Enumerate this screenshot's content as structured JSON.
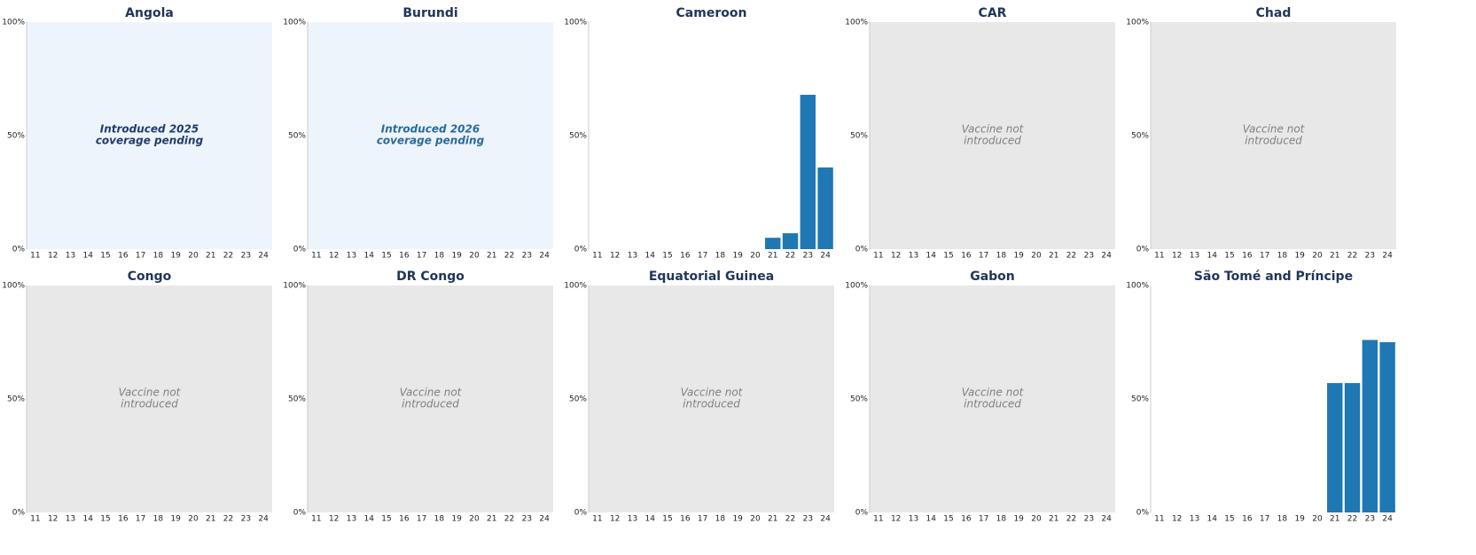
{
  "chart_data": [
    {
      "type": "bar",
      "title": "Angola",
      "categories": [
        "11",
        "12",
        "13",
        "14",
        "15",
        "16",
        "17",
        "18",
        "19",
        "20",
        "21",
        "22",
        "23",
        "24"
      ],
      "values": [
        null,
        null,
        null,
        null,
        null,
        null,
        null,
        null,
        null,
        null,
        null,
        null,
        null,
        null
      ],
      "color": "#1f77b4",
      "background": "#eef4fc",
      "annotation": [
        "Introduced 2025",
        "coverage pending"
      ],
      "annotation_color": "#1f3d6b",
      "ylim": [
        0,
        100
      ],
      "yticks": [
        {
          "value": 0,
          "label": "0%"
        },
        {
          "value": 50,
          "label": "50%"
        },
        {
          "value": 100,
          "label": "100%"
        }
      ]
    },
    {
      "type": "bar",
      "title": "Burundi",
      "categories": [
        "11",
        "12",
        "13",
        "14",
        "15",
        "16",
        "17",
        "18",
        "19",
        "20",
        "21",
        "22",
        "23",
        "24"
      ],
      "values": [
        null,
        null,
        null,
        null,
        null,
        null,
        null,
        null,
        null,
        null,
        null,
        null,
        null,
        null
      ],
      "color": "#1f77b4",
      "background": "#eef4fc",
      "annotation": [
        "Introduced 2026",
        "coverage pending"
      ],
      "annotation_color": "#2b6a9a",
      "ylim": [
        0,
        100
      ],
      "yticks": [
        {
          "value": 0,
          "label": "0%"
        },
        {
          "value": 50,
          "label": "50%"
        },
        {
          "value": 100,
          "label": "100%"
        }
      ]
    },
    {
      "type": "bar",
      "title": "Cameroon",
      "categories": [
        "11",
        "12",
        "13",
        "14",
        "15",
        "16",
        "17",
        "18",
        "19",
        "20",
        "21",
        "22",
        "23",
        "24"
      ],
      "values": [
        null,
        null,
        null,
        null,
        null,
        null,
        null,
        null,
        null,
        null,
        5,
        7,
        68,
        36
      ],
      "color": "#1f77b4",
      "background": "#ffffff",
      "ylim": [
        0,
        100
      ],
      "yticks": [
        {
          "value": 0,
          "label": "0%"
        },
        {
          "value": 50,
          "label": "50%"
        },
        {
          "value": 100,
          "label": "100%"
        }
      ]
    },
    {
      "type": "bar",
      "title": "CAR",
      "categories": [
        "11",
        "12",
        "13",
        "14",
        "15",
        "16",
        "17",
        "18",
        "19",
        "20",
        "21",
        "22",
        "23",
        "24"
      ],
      "values": [
        null,
        null,
        null,
        null,
        null,
        null,
        null,
        null,
        null,
        null,
        null,
        null,
        null,
        null
      ],
      "color": "#1f77b4",
      "background": "#e8e8e8",
      "annotation": [
        "Vaccine not",
        "introduced"
      ],
      "annotation_color": "#808080",
      "ylim": [
        0,
        100
      ],
      "yticks": [
        {
          "value": 0,
          "label": "0%"
        },
        {
          "value": 50,
          "label": "50%"
        },
        {
          "value": 100,
          "label": "100%"
        }
      ]
    },
    {
      "type": "bar",
      "title": "Chad",
      "categories": [
        "11",
        "12",
        "13",
        "14",
        "15",
        "16",
        "17",
        "18",
        "19",
        "20",
        "21",
        "22",
        "23",
        "24"
      ],
      "values": [
        null,
        null,
        null,
        null,
        null,
        null,
        null,
        null,
        null,
        null,
        null,
        null,
        null,
        null
      ],
      "color": "#1f77b4",
      "background": "#e8e8e8",
      "annotation": [
        "Vaccine not",
        "introduced"
      ],
      "annotation_color": "#808080",
      "ylim": [
        0,
        100
      ],
      "yticks": [
        {
          "value": 0,
          "label": "0%"
        },
        {
          "value": 50,
          "label": "50%"
        },
        {
          "value": 100,
          "label": "100%"
        }
      ]
    },
    {
      "type": "bar",
      "title": "Congo",
      "categories": [
        "11",
        "12",
        "13",
        "14",
        "15",
        "16",
        "17",
        "18",
        "19",
        "20",
        "21",
        "22",
        "23",
        "24"
      ],
      "values": [
        null,
        null,
        null,
        null,
        null,
        null,
        null,
        null,
        null,
        null,
        null,
        null,
        null,
        null
      ],
      "color": "#1f77b4",
      "background": "#e8e8e8",
      "annotation": [
        "Vaccine not",
        "introduced"
      ],
      "annotation_color": "#808080",
      "ylim": [
        0,
        100
      ],
      "yticks": [
        {
          "value": 0,
          "label": "0%"
        },
        {
          "value": 50,
          "label": "50%"
        },
        {
          "value": 100,
          "label": "100%"
        }
      ]
    },
    {
      "type": "bar",
      "title": "DR Congo",
      "categories": [
        "11",
        "12",
        "13",
        "14",
        "15",
        "16",
        "17",
        "18",
        "19",
        "20",
        "21",
        "22",
        "23",
        "24"
      ],
      "values": [
        null,
        null,
        null,
        null,
        null,
        null,
        null,
        null,
        null,
        null,
        null,
        null,
        null,
        null
      ],
      "color": "#1f77b4",
      "background": "#e8e8e8",
      "annotation": [
        "Vaccine not",
        "introduced"
      ],
      "annotation_color": "#808080",
      "ylim": [
        0,
        100
      ],
      "yticks": [
        {
          "value": 0,
          "label": "0%"
        },
        {
          "value": 50,
          "label": "50%"
        },
        {
          "value": 100,
          "label": "100%"
        }
      ]
    },
    {
      "type": "bar",
      "title": "Equatorial Guinea",
      "categories": [
        "11",
        "12",
        "13",
        "14",
        "15",
        "16",
        "17",
        "18",
        "19",
        "20",
        "21",
        "22",
        "23",
        "24"
      ],
      "values": [
        null,
        null,
        null,
        null,
        null,
        null,
        null,
        null,
        null,
        null,
        null,
        null,
        null,
        null
      ],
      "color": "#1f77b4",
      "background": "#e8e8e8",
      "annotation": [
        "Vaccine not",
        "introduced"
      ],
      "annotation_color": "#808080",
      "ylim": [
        0,
        100
      ],
      "yticks": [
        {
          "value": 0,
          "label": "0%"
        },
        {
          "value": 50,
          "label": "50%"
        },
        {
          "value": 100,
          "label": "100%"
        }
      ]
    },
    {
      "type": "bar",
      "title": "Gabon",
      "categories": [
        "11",
        "12",
        "13",
        "14",
        "15",
        "16",
        "17",
        "18",
        "19",
        "20",
        "21",
        "22",
        "23",
        "24"
      ],
      "values": [
        null,
        null,
        null,
        null,
        null,
        null,
        null,
        null,
        null,
        null,
        null,
        null,
        null,
        null
      ],
      "color": "#1f77b4",
      "background": "#e8e8e8",
      "annotation": [
        "Vaccine not",
        "introduced"
      ],
      "annotation_color": "#808080",
      "ylim": [
        0,
        100
      ],
      "yticks": [
        {
          "value": 0,
          "label": "0%"
        },
        {
          "value": 50,
          "label": "50%"
        },
        {
          "value": 100,
          "label": "100%"
        }
      ]
    },
    {
      "type": "bar",
      "title": "São Tomé and Príncipe",
      "categories": [
        "11",
        "12",
        "13",
        "14",
        "15",
        "16",
        "17",
        "18",
        "19",
        "20",
        "21",
        "22",
        "23",
        "24"
      ],
      "values": [
        null,
        null,
        null,
        null,
        null,
        null,
        null,
        null,
        null,
        null,
        57,
        57,
        76,
        75
      ],
      "color": "#1f77b4",
      "background": "#ffffff",
      "ylim": [
        0,
        100
      ],
      "yticks": [
        {
          "value": 0,
          "label": "0%"
        },
        {
          "value": 50,
          "label": "50%"
        },
        {
          "value": 100,
          "label": "100%"
        }
      ]
    }
  ]
}
